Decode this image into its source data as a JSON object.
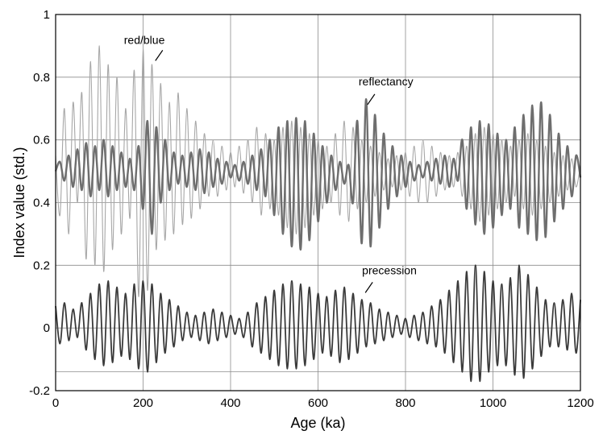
{
  "chart_data": {
    "type": "line",
    "xlabel": "Age (ka)",
    "ylabel": "Index value (std.)",
    "xlim": [
      0,
      1200
    ],
    "ylim": [
      -0.2,
      1.0
    ],
    "x_ticks": [
      0,
      200,
      400,
      600,
      800,
      1000,
      1200
    ],
    "y_ticks": [
      -0.2,
      0,
      0.2,
      0.4,
      0.6,
      0.8,
      1.0
    ],
    "y_tick_labels": [
      "-0.2",
      "0",
      "0.2",
      "0.4",
      "0.6",
      "0.8",
      "1"
    ],
    "extra_hgrid": [
      -0.14
    ],
    "grid": true,
    "legend": "none",
    "colors": {
      "red_blue": "#a6a6a6",
      "reflectancy": "#6e6e6e",
      "precession": "#3a3a3a",
      "grid": "#8c8c8c"
    },
    "series": [
      {
        "name": "red/blue",
        "x": [
          0,
          10,
          20,
          30,
          40,
          50,
          60,
          70,
          80,
          90,
          100,
          110,
          120,
          130,
          140,
          150,
          160,
          170,
          180,
          190,
          200,
          210,
          220,
          230,
          240,
          250,
          260,
          270,
          280,
          290,
          300,
          310,
          320,
          330,
          340,
          350,
          360,
          370,
          380,
          390,
          400,
          410,
          420,
          430,
          440,
          450,
          460,
          470,
          480,
          490,
          500,
          510,
          520,
          530,
          540,
          550,
          560,
          570,
          580,
          590,
          600,
          610,
          620,
          630,
          640,
          650,
          660,
          670,
          680,
          690,
          700,
          710,
          720,
          730,
          740,
          750,
          760,
          770,
          780,
          790,
          800,
          810,
          820,
          830,
          840,
          850,
          860,
          870,
          880,
          890,
          900,
          910,
          920,
          930,
          940,
          950,
          960,
          970,
          980,
          990,
          1000,
          1010,
          1020,
          1030,
          1040,
          1050,
          1060,
          1070,
          1080,
          1090,
          1100,
          1110,
          1120,
          1130,
          1140,
          1150,
          1160,
          1170,
          1180,
          1190,
          1200
        ],
        "y": [
          0.55,
          0.36,
          0.7,
          0.3,
          0.72,
          0.4,
          0.75,
          0.22,
          0.85,
          0.2,
          0.9,
          0.18,
          0.84,
          0.25,
          0.8,
          0.3,
          0.7,
          0.35,
          0.82,
          0.1,
          0.89,
          0.12,
          0.84,
          0.25,
          0.78,
          0.28,
          0.72,
          0.3,
          0.75,
          0.33,
          0.7,
          0.35,
          0.66,
          0.38,
          0.62,
          0.42,
          0.6,
          0.42,
          0.58,
          0.44,
          0.56,
          0.45,
          0.58,
          0.43,
          0.6,
          0.4,
          0.64,
          0.36,
          0.62,
          0.38,
          0.6,
          0.36,
          0.64,
          0.32,
          0.66,
          0.3,
          0.64,
          0.32,
          0.62,
          0.36,
          0.6,
          0.38,
          0.58,
          0.4,
          0.62,
          0.36,
          0.66,
          0.34,
          0.64,
          0.38,
          0.6,
          0.4,
          0.58,
          0.42,
          0.56,
          0.44,
          0.54,
          0.45,
          0.55,
          0.44,
          0.56,
          0.42,
          0.58,
          0.4,
          0.6,
          0.4,
          0.58,
          0.42,
          0.56,
          0.44,
          0.55,
          0.45,
          0.56,
          0.42,
          0.58,
          0.38,
          0.62,
          0.34,
          0.64,
          0.36,
          0.62,
          0.38,
          0.6,
          0.4,
          0.58,
          0.42,
          0.6,
          0.38,
          0.62,
          0.36,
          0.6,
          0.38,
          0.58,
          0.4,
          0.56,
          0.42,
          0.55,
          0.44,
          0.54,
          0.45,
          0.52
        ]
      },
      {
        "name": "reflectancy",
        "x": [
          0,
          10,
          20,
          30,
          40,
          50,
          60,
          70,
          80,
          90,
          100,
          110,
          120,
          130,
          140,
          150,
          160,
          170,
          180,
          190,
          200,
          210,
          220,
          230,
          240,
          250,
          260,
          270,
          280,
          290,
          300,
          310,
          320,
          330,
          340,
          350,
          360,
          370,
          380,
          390,
          400,
          410,
          420,
          430,
          440,
          450,
          460,
          470,
          480,
          490,
          500,
          510,
          520,
          530,
          540,
          550,
          560,
          570,
          580,
          590,
          600,
          610,
          620,
          630,
          640,
          650,
          660,
          670,
          680,
          690,
          700,
          710,
          720,
          730,
          740,
          750,
          760,
          770,
          780,
          790,
          800,
          810,
          820,
          830,
          840,
          850,
          860,
          870,
          880,
          890,
          900,
          910,
          920,
          930,
          940,
          950,
          960,
          970,
          980,
          990,
          1000,
          1010,
          1020,
          1030,
          1040,
          1050,
          1060,
          1070,
          1080,
          1090,
          1100,
          1110,
          1120,
          1130,
          1140,
          1150,
          1160,
          1170,
          1180,
          1190,
          1200
        ],
        "y": [
          0.5,
          0.53,
          0.47,
          0.55,
          0.45,
          0.57,
          0.44,
          0.59,
          0.42,
          0.58,
          0.44,
          0.6,
          0.42,
          0.58,
          0.44,
          0.56,
          0.45,
          0.54,
          0.44,
          0.58,
          0.38,
          0.66,
          0.3,
          0.64,
          0.4,
          0.6,
          0.44,
          0.56,
          0.46,
          0.55,
          0.45,
          0.56,
          0.44,
          0.57,
          0.43,
          0.56,
          0.45,
          0.54,
          0.46,
          0.53,
          0.48,
          0.52,
          0.47,
          0.53,
          0.46,
          0.55,
          0.44,
          0.57,
          0.42,
          0.6,
          0.36,
          0.64,
          0.3,
          0.66,
          0.26,
          0.67,
          0.25,
          0.66,
          0.28,
          0.62,
          0.34,
          0.58,
          0.4,
          0.55,
          0.44,
          0.53,
          0.46,
          0.52,
          0.4,
          0.66,
          0.27,
          0.73,
          0.26,
          0.68,
          0.32,
          0.62,
          0.38,
          0.58,
          0.42,
          0.55,
          0.45,
          0.53,
          0.47,
          0.52,
          0.48,
          0.53,
          0.47,
          0.54,
          0.46,
          0.55,
          0.45,
          0.54,
          0.47,
          0.6,
          0.38,
          0.64,
          0.33,
          0.66,
          0.3,
          0.65,
          0.32,
          0.62,
          0.36,
          0.6,
          0.38,
          0.64,
          0.32,
          0.68,
          0.3,
          0.71,
          0.28,
          0.72,
          0.29,
          0.68,
          0.34,
          0.62,
          0.38,
          0.58,
          0.42,
          0.55,
          0.48
        ]
      },
      {
        "name": "precession",
        "x": [
          0,
          10,
          20,
          30,
          40,
          50,
          60,
          70,
          80,
          90,
          100,
          110,
          120,
          130,
          140,
          150,
          160,
          170,
          180,
          190,
          200,
          210,
          220,
          230,
          240,
          250,
          260,
          270,
          280,
          290,
          300,
          310,
          320,
          330,
          340,
          350,
          360,
          370,
          380,
          390,
          400,
          410,
          420,
          430,
          440,
          450,
          460,
          470,
          480,
          490,
          500,
          510,
          520,
          530,
          540,
          550,
          560,
          570,
          580,
          590,
          600,
          610,
          620,
          630,
          640,
          650,
          660,
          670,
          680,
          690,
          700,
          710,
          720,
          730,
          740,
          750,
          760,
          770,
          780,
          790,
          800,
          810,
          820,
          830,
          840,
          850,
          860,
          870,
          880,
          890,
          900,
          910,
          920,
          930,
          940,
          950,
          960,
          970,
          980,
          990,
          1000,
          1010,
          1020,
          1030,
          1040,
          1050,
          1060,
          1070,
          1080,
          1090,
          1100,
          1110,
          1120,
          1130,
          1140,
          1150,
          1160,
          1170,
          1180,
          1190,
          1200
        ],
        "y": [
          0.07,
          -0.05,
          0.08,
          -0.04,
          0.06,
          -0.03,
          0.08,
          -0.07,
          0.11,
          -0.1,
          0.14,
          -0.12,
          0.15,
          -0.11,
          0.13,
          -0.09,
          0.11,
          -0.1,
          0.14,
          -0.13,
          0.15,
          -0.14,
          0.14,
          -0.11,
          0.11,
          -0.08,
          0.09,
          -0.06,
          0.07,
          -0.04,
          0.05,
          -0.03,
          0.04,
          -0.04,
          0.05,
          -0.05,
          0.06,
          -0.04,
          0.05,
          -0.03,
          0.04,
          -0.02,
          0.03,
          -0.03,
          0.05,
          -0.06,
          0.08,
          -0.08,
          0.1,
          -0.1,
          0.12,
          -0.12,
          0.14,
          -0.13,
          0.15,
          -0.13,
          0.14,
          -0.12,
          0.13,
          -0.1,
          0.11,
          -0.08,
          0.1,
          -0.09,
          0.12,
          -0.11,
          0.13,
          -0.1,
          0.11,
          -0.08,
          0.09,
          -0.06,
          0.08,
          -0.05,
          0.06,
          -0.04,
          0.05,
          -0.03,
          0.04,
          -0.02,
          0.03,
          -0.03,
          0.04,
          -0.04,
          0.05,
          -0.05,
          0.07,
          -0.06,
          0.09,
          -0.08,
          0.12,
          -0.11,
          0.15,
          -0.14,
          0.18,
          -0.17,
          0.2,
          -0.17,
          0.18,
          -0.14,
          0.15,
          -0.12,
          0.14,
          -0.12,
          0.16,
          -0.15,
          0.2,
          -0.16,
          0.17,
          -0.13,
          0.13,
          -0.09,
          0.09,
          -0.06,
          0.08,
          -0.06,
          0.09,
          -0.07,
          0.11,
          -0.08,
          0.09
        ]
      }
    ],
    "annotations": [
      {
        "text": "red/blue",
        "series": "red/blue",
        "x": 230,
        "y": 0.85
      },
      {
        "text": "reflectancy",
        "series": "reflectancy",
        "x": 715,
        "y": 0.71
      },
      {
        "text": "precession",
        "series": "precession",
        "x": 710,
        "y": 0.11
      }
    ]
  }
}
